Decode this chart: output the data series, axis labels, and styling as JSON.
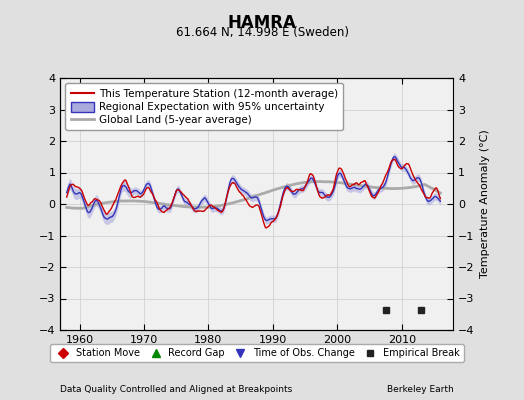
{
  "title": "HAMRA",
  "subtitle": "61.664 N, 14.998 E (Sweden)",
  "xlabel_left": "Data Quality Controlled and Aligned at Breakpoints",
  "xlabel_right": "Berkeley Earth",
  "ylabel": "Temperature Anomaly (°C)",
  "xlim": [
    1957,
    2018
  ],
  "ylim": [
    -4,
    4
  ],
  "xticks": [
    1960,
    1970,
    1980,
    1990,
    2000,
    2010
  ],
  "yticks": [
    -4,
    -3,
    -2,
    -1,
    0,
    1,
    2,
    3,
    4
  ],
  "bg_color": "#e0e0e0",
  "plot_bg_color": "#f0f0f0",
  "empirical_breaks": [
    2007.5,
    2013.0
  ],
  "red_color": "#cc0000",
  "blue_color": "#3333bb",
  "blue_band_color": "#aaaadd",
  "gray_color": "#aaaaaa",
  "grid_color": "#cccccc",
  "marker_legend": [
    {
      "label": "Station Move",
      "marker": "D",
      "color": "#cc0000"
    },
    {
      "label": "Record Gap",
      "marker": "^",
      "color": "#008800"
    },
    {
      "label": "Time of Obs. Change",
      "marker": "v",
      "color": "#3333bb"
    },
    {
      "label": "Empirical Break",
      "marker": "s",
      "color": "#222222"
    }
  ],
  "figsize": [
    5.24,
    4.0
  ],
  "dpi": 100
}
